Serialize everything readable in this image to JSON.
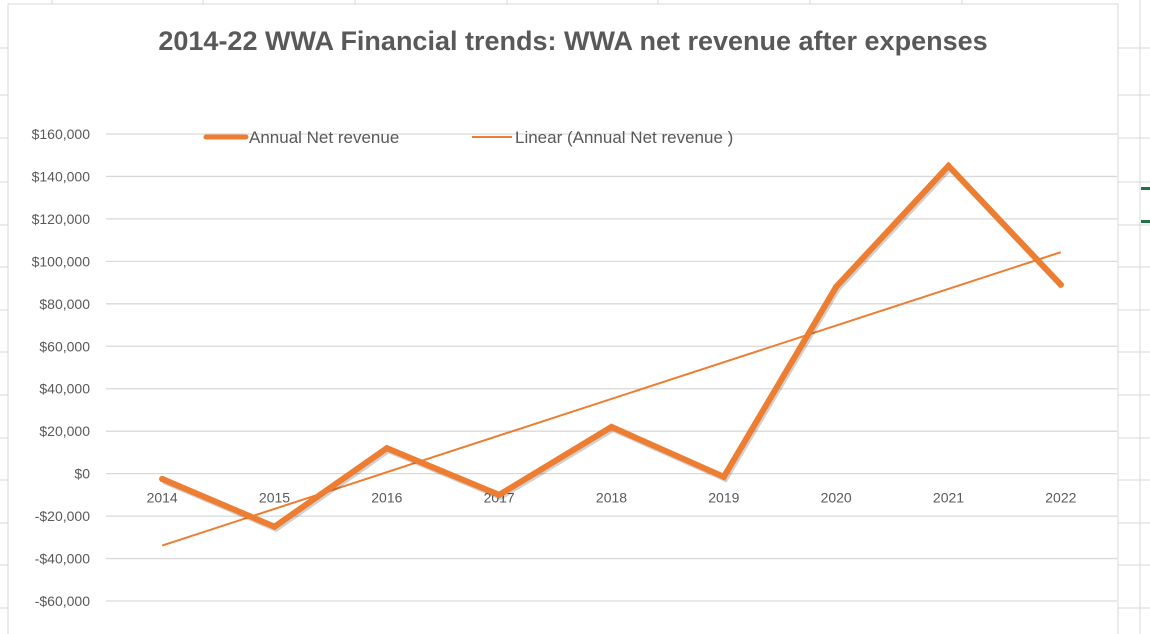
{
  "chart_data": {
    "type": "line",
    "title": "2014-22 WWA Financial trends: WWA net revenue after expenses",
    "xlabel": "",
    "ylabel": "",
    "categories": [
      "2014",
      "2015",
      "2016",
      "2017",
      "2018",
      "2019",
      "2020",
      "2021",
      "2022"
    ],
    "series": [
      {
        "name": "Annual Net revenue",
        "values": [
          -2500,
          -25000,
          12000,
          -10000,
          22000,
          -1500,
          88000,
          145000,
          89000
        ],
        "color": "#ed7d31"
      }
    ],
    "trendline": {
      "name": "Linear (Annual Net revenue )",
      "type": "linear",
      "of": "Annual Net revenue",
      "color": "#ed7d31"
    },
    "ylim": [
      -60000,
      160000
    ],
    "yticks": [
      160000,
      140000,
      120000,
      100000,
      80000,
      60000,
      40000,
      20000,
      0,
      -20000,
      -40000,
      -60000
    ],
    "ytick_labels": [
      "$160,000",
      "$140,000",
      "$120,000",
      "$100,000",
      "$80,000",
      "$60,000",
      "$40,000",
      "$20,000",
      "$0",
      "-$20,000",
      "-$40,000",
      "-$60,000"
    ],
    "grid": true,
    "legend": "top"
  }
}
